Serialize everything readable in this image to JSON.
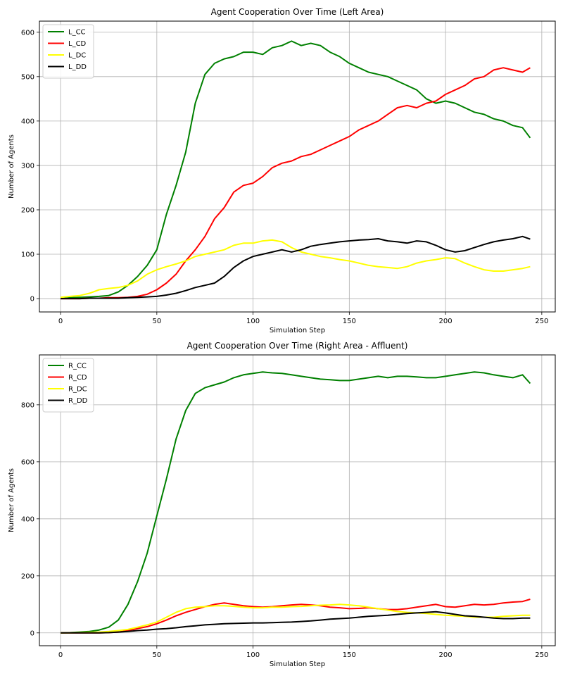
{
  "chart_data": [
    {
      "type": "line",
      "title": "Agent Cooperation Over Time (Left Area)",
      "xlabel": "Simulation Step",
      "ylabel": "Number of Agents",
      "xlim": [
        -11,
        257
      ],
      "ylim": [
        -30,
        625
      ],
      "xticks": [
        0,
        50,
        100,
        150,
        200,
        250
      ],
      "yticks": [
        0,
        100,
        200,
        300,
        400,
        500,
        600
      ],
      "grid": true,
      "legend_position": "top-left",
      "x": [
        0,
        5,
        10,
        15,
        20,
        25,
        30,
        35,
        40,
        45,
        50,
        55,
        60,
        65,
        70,
        75,
        80,
        85,
        90,
        95,
        100,
        105,
        110,
        115,
        120,
        125,
        130,
        135,
        140,
        145,
        150,
        155,
        160,
        165,
        170,
        175,
        180,
        185,
        190,
        195,
        200,
        205,
        210,
        215,
        220,
        225,
        230,
        235,
        240,
        244
      ],
      "series": [
        {
          "name": "L_CC",
          "color": "#008000",
          "values": [
            0,
            2,
            3,
            4,
            5,
            7,
            15,
            30,
            50,
            75,
            110,
            190,
            255,
            330,
            440,
            505,
            530,
            540,
            545,
            555,
            555,
            550,
            565,
            570,
            580,
            570,
            575,
            570,
            555,
            545,
            530,
            520,
            510,
            505,
            500,
            490,
            480,
            470,
            450,
            440,
            445,
            440,
            430,
            420,
            415,
            405,
            400,
            390,
            385,
            362
          ]
        },
        {
          "name": "L_CD",
          "color": "#ff0000",
          "values": [
            0,
            0,
            0,
            1,
            1,
            2,
            2,
            3,
            5,
            10,
            20,
            35,
            55,
            85,
            110,
            140,
            180,
            205,
            240,
            255,
            260,
            275,
            295,
            305,
            310,
            320,
            325,
            335,
            345,
            355,
            365,
            380,
            390,
            400,
            415,
            430,
            435,
            430,
            440,
            445,
            460,
            470,
            480,
            495,
            500,
            515,
            520,
            515,
            510,
            520
          ]
        },
        {
          "name": "L_DC",
          "color": "#ffff00",
          "values": [
            3,
            5,
            7,
            12,
            20,
            23,
            25,
            30,
            40,
            55,
            65,
            72,
            78,
            85,
            95,
            100,
            105,
            110,
            120,
            125,
            125,
            130,
            132,
            128,
            115,
            105,
            100,
            95,
            92,
            88,
            85,
            80,
            75,
            72,
            70,
            68,
            72,
            80,
            85,
            88,
            92,
            90,
            80,
            72,
            65,
            62,
            62,
            65,
            68,
            72
          ]
        },
        {
          "name": "L_DD",
          "color": "#000000",
          "values": [
            0,
            0,
            0,
            1,
            1,
            1,
            1,
            2,
            3,
            4,
            5,
            8,
            12,
            18,
            25,
            30,
            35,
            50,
            70,
            85,
            95,
            100,
            105,
            110,
            105,
            110,
            118,
            122,
            125,
            128,
            130,
            132,
            133,
            135,
            130,
            128,
            125,
            130,
            128,
            120,
            110,
            105,
            108,
            115,
            122,
            128,
            132,
            135,
            140,
            134
          ]
        }
      ]
    },
    {
      "type": "line",
      "title": "Agent Cooperation Over Time (Right Area - Affluent)",
      "xlabel": "Simulation Step",
      "ylabel": "Number of Agents",
      "xlim": [
        -11,
        257
      ],
      "ylim": [
        -45,
        975
      ],
      "xticks": [
        0,
        50,
        100,
        150,
        200,
        250
      ],
      "yticks": [
        0,
        200,
        400,
        600,
        800
      ],
      "grid": true,
      "legend_position": "top-left",
      "x": [
        0,
        5,
        10,
        15,
        20,
        25,
        30,
        35,
        40,
        45,
        50,
        55,
        60,
        65,
        70,
        75,
        80,
        85,
        90,
        95,
        100,
        105,
        110,
        115,
        120,
        125,
        130,
        135,
        140,
        145,
        150,
        155,
        160,
        165,
        170,
        175,
        180,
        185,
        190,
        195,
        200,
        205,
        210,
        215,
        220,
        225,
        230,
        235,
        240,
        244
      ],
      "series": [
        {
          "name": "R_CC",
          "color": "#008000",
          "values": [
            0,
            1,
            3,
            5,
            10,
            20,
            45,
            100,
            180,
            280,
            410,
            540,
            680,
            780,
            840,
            860,
            870,
            880,
            895,
            905,
            910,
            915,
            912,
            910,
            905,
            900,
            895,
            890,
            888,
            885,
            885,
            890,
            895,
            900,
            895,
            900,
            900,
            898,
            895,
            895,
            900,
            905,
            910,
            915,
            912,
            905,
            900,
            895,
            905,
            875
          ]
        },
        {
          "name": "R_CD",
          "color": "#ff0000",
          "values": [
            0,
            0,
            0,
            0,
            0,
            1,
            3,
            8,
            15,
            22,
            32,
            45,
            60,
            72,
            82,
            92,
            100,
            105,
            100,
            95,
            92,
            90,
            92,
            95,
            98,
            100,
            98,
            95,
            90,
            88,
            85,
            86,
            88,
            85,
            82,
            82,
            85,
            90,
            95,
            100,
            92,
            90,
            95,
            100,
            98,
            100,
            105,
            108,
            110,
            118
          ]
        },
        {
          "name": "R_DC",
          "color": "#ffff00",
          "values": [
            0,
            0,
            1,
            2,
            3,
            5,
            8,
            12,
            20,
            28,
            38,
            55,
            72,
            85,
            90,
            92,
            95,
            95,
            93,
            90,
            88,
            88,
            90,
            90,
            92,
            93,
            95,
            97,
            98,
            100,
            98,
            95,
            90,
            85,
            80,
            75,
            72,
            70,
            68,
            65,
            62,
            60,
            58,
            55,
            55,
            55,
            58,
            60,
            62,
            62
          ]
        },
        {
          "name": "R_DD",
          "color": "#000000",
          "values": [
            0,
            0,
            0,
            0,
            0,
            1,
            3,
            5,
            8,
            10,
            13,
            15,
            18,
            22,
            25,
            28,
            30,
            32,
            33,
            34,
            35,
            35,
            36,
            37,
            38,
            40,
            42,
            45,
            48,
            50,
            52,
            55,
            58,
            60,
            62,
            65,
            68,
            70,
            72,
            74,
            70,
            65,
            60,
            58,
            55,
            52,
            50,
            50,
            52,
            52
          ]
        }
      ]
    }
  ]
}
